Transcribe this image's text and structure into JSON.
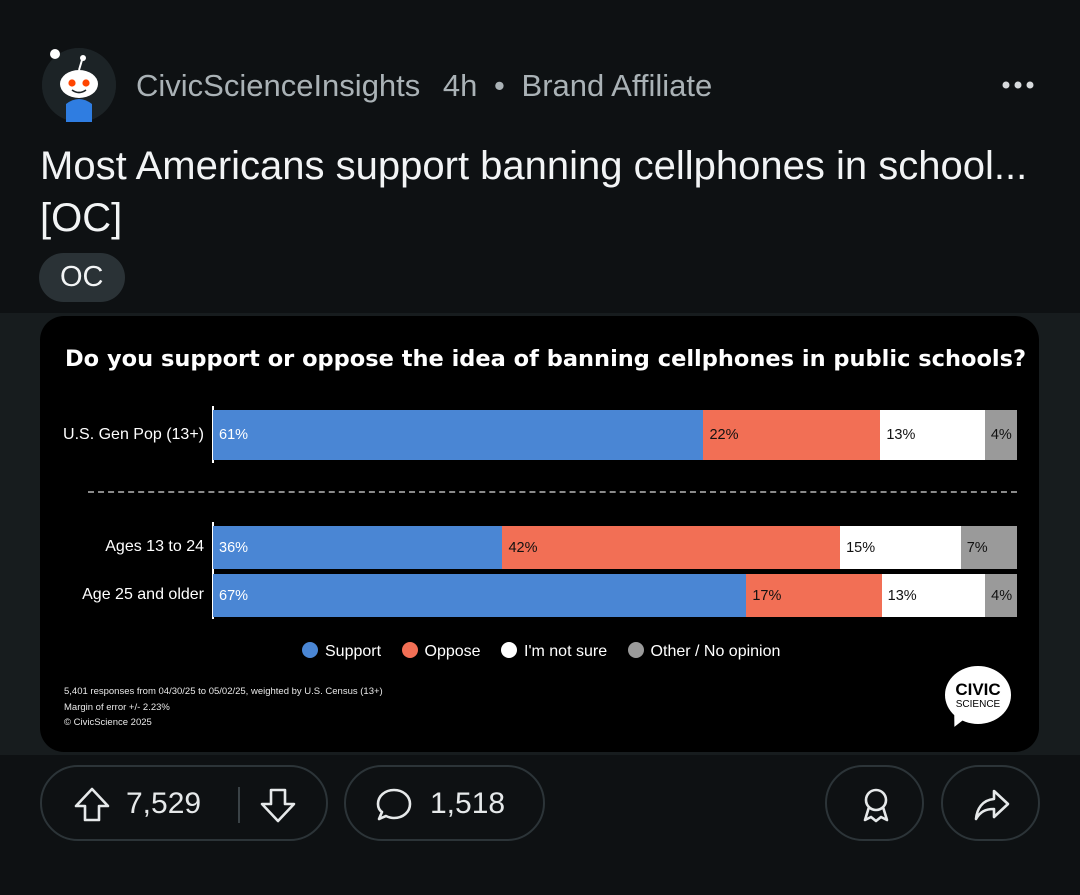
{
  "post": {
    "author": "CivicScienceInsights",
    "time": "4h",
    "separator": "•",
    "badge": "Brand Affiliate",
    "title": "Most Americans support banning cellphones in school... [OC]",
    "flair": "OC"
  },
  "chart_data": {
    "type": "bar",
    "stacked": true,
    "orientation": "horizontal",
    "title": "Do you support or oppose the idea of banning cellphones in public schools?",
    "categories": [
      "U.S. Gen Pop (13+)",
      "Ages 13 to 24",
      "Age 25 and older"
    ],
    "series": [
      {
        "name": "Support",
        "values": [
          61,
          36,
          67
        ],
        "color": "#4a86d4"
      },
      {
        "name": "Oppose",
        "values": [
          22,
          42,
          17
        ],
        "color": "#f26f55"
      },
      {
        "name": "I'm not sure",
        "values": [
          13,
          15,
          13
        ],
        "color": "#ffffff"
      },
      {
        "name": "Other / No opinion",
        "values": [
          4,
          7,
          4
        ],
        "color": "#9a9a9a"
      }
    ],
    "value_labels": [
      [
        "61%",
        "22%",
        "13%",
        "4%"
      ],
      [
        "36%",
        "42%",
        "15%",
        "7%"
      ],
      [
        "67%",
        "17%",
        "13%",
        "4%"
      ]
    ],
    "legend": [
      "Support",
      "Oppose",
      "I'm not sure",
      "Other / No opinion"
    ],
    "legend_position": "bottom",
    "footnotes": [
      "5,401 responses from 04/30/25 to 05/02/25, weighted by U.S. Census (13+)",
      "Margin of error +/- 2.23%",
      "© CivicScience 2025"
    ],
    "logo": {
      "line1": "CIVIC",
      "line2": "SCIENCE"
    }
  },
  "actions": {
    "upvotes": "7,529",
    "comments": "1,518"
  },
  "icons": {
    "avatar": "reddit-snoo-avatar",
    "more": "more-horizontal-icon",
    "upvote": "upvote-arrow-icon",
    "downvote": "downvote-arrow-icon",
    "comment": "comment-bubble-icon",
    "award": "award-icon",
    "share": "share-arrow-icon"
  },
  "colors": {
    "background": "#0e1113",
    "support": "#4a86d4",
    "oppose": "#f26f55",
    "not_sure": "#ffffff",
    "other": "#9a9a9a"
  }
}
